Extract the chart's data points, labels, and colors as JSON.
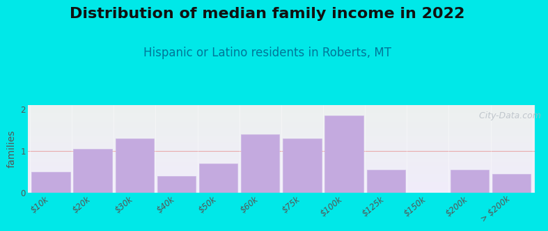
{
  "title": "Distribution of median family income in 2022",
  "subtitle": "Hispanic or Latino residents in Roberts, MT",
  "ylabel": "families",
  "background_outer": "#00e8e8",
  "background_plot_top": "#e8f5e2",
  "background_plot_bottom": "#f0ecfa",
  "bar_color": "#c4aadf",
  "bar_edge_color": "#cdb8e5",
  "grid_color": "#e8a0a0",
  "categories": [
    "$10k",
    "$20k",
    "$30k",
    "$40k",
    "$50k",
    "$60k",
    "$75k",
    "$100k",
    "$125k",
    "$150k",
    "$200k",
    "> $200k"
  ],
  "values": [
    0.5,
    1.05,
    1.3,
    0.4,
    0.7,
    1.4,
    1.3,
    1.85,
    0.55,
    0.0,
    0.55,
    0.45
  ],
  "ylim": [
    0,
    2.1
  ],
  "yticks": [
    0,
    1,
    2
  ],
  "watermark": "  City-Data.com",
  "title_fontsize": 16,
  "subtitle_fontsize": 12,
  "ylabel_fontsize": 10,
  "tick_fontsize": 8.5
}
